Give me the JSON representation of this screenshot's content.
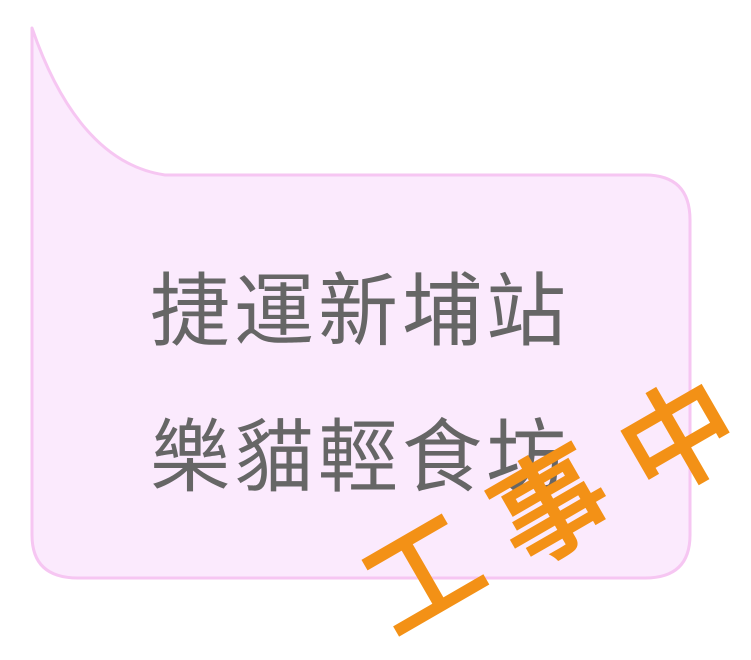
{
  "bubble": {
    "fill_color": "#fbeafd",
    "border_color": "#f6c6f2",
    "line_1": "捷運新埔站",
    "line_2": "樂貓輕食坊"
  },
  "stamp": {
    "color": "#f39116",
    "chars": [
      "工",
      "事",
      "中"
    ]
  }
}
